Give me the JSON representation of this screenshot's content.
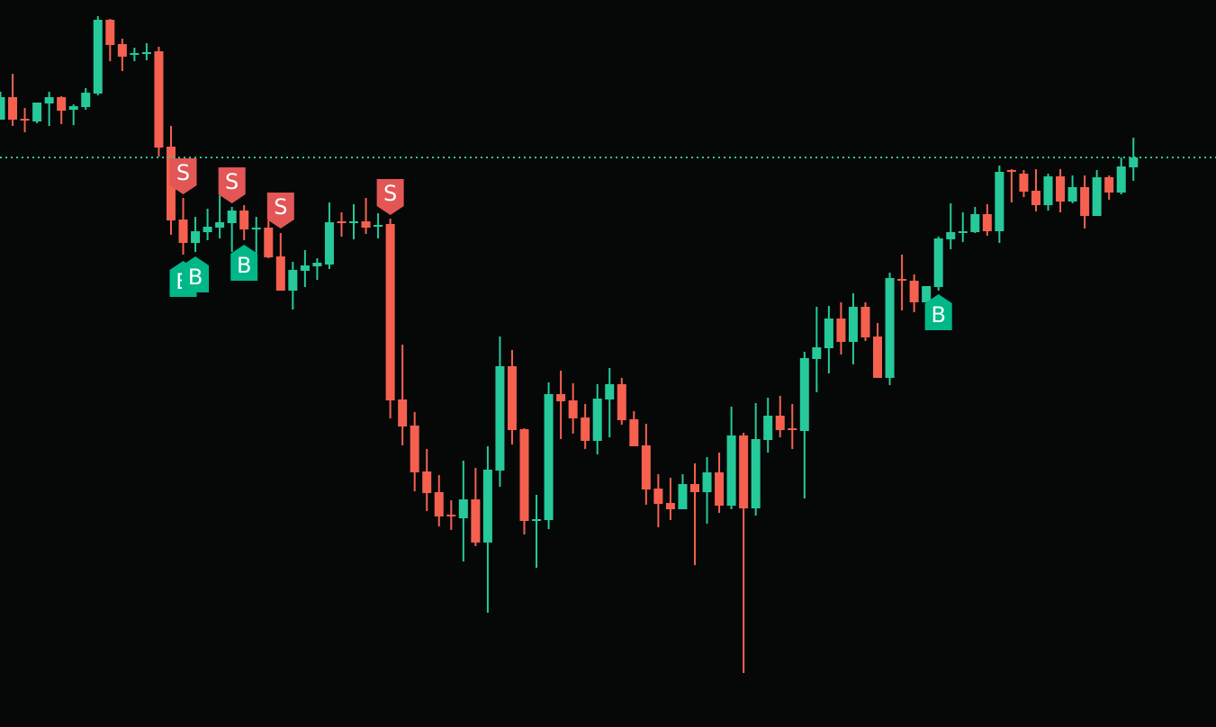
{
  "chart_data": {
    "type": "candlestick",
    "title": "",
    "xlabel": "",
    "ylabel": "",
    "grid": false,
    "ylim": [
      192,
      1000
    ],
    "colors": {
      "background": "#060808",
      "up": "#26c99a",
      "down": "#f5604f",
      "reference_line": "#26c99a",
      "sell_marker": "#e35656",
      "buy_marker": "#00b887",
      "marker_text": "#ffffff"
    },
    "reference_line": 825,
    "candles": [
      [
        867,
        898,
        867,
        892
      ],
      [
        892,
        918,
        860,
        867
      ],
      [
        868,
        880,
        853,
        867
      ],
      [
        865,
        886,
        863,
        886
      ],
      [
        885,
        898,
        860,
        892
      ],
      [
        892,
        893,
        862,
        877
      ],
      [
        878,
        884,
        861,
        882
      ],
      [
        881,
        902,
        878,
        897
      ],
      [
        896,
        982,
        894,
        978
      ],
      [
        978,
        979,
        932,
        950
      ],
      [
        951,
        957,
        921,
        937
      ],
      [
        939,
        947,
        932,
        941
      ],
      [
        940,
        952,
        933,
        942
      ],
      [
        943,
        948,
        826,
        836
      ],
      [
        837,
        860,
        739,
        755
      ],
      [
        756,
        780,
        717,
        730
      ],
      [
        730,
        759,
        720,
        743
      ],
      [
        742,
        768,
        733,
        748
      ],
      [
        747,
        783,
        735,
        753
      ],
      [
        752,
        770,
        720,
        766
      ],
      [
        766,
        772,
        733,
        745
      ],
      [
        746,
        759,
        710,
        747
      ],
      [
        747,
        755,
        713,
        714
      ],
      [
        715,
        741,
        677,
        677
      ],
      [
        677,
        709,
        656,
        700
      ],
      [
        699,
        722,
        681,
        705
      ],
      [
        704,
        713,
        689,
        708
      ],
      [
        706,
        775,
        701,
        753
      ],
      [
        754,
        764,
        737,
        752
      ],
      [
        752,
        773,
        734,
        754
      ],
      [
        754,
        780,
        740,
        747
      ],
      [
        748,
        763,
        735,
        750
      ],
      [
        751,
        757,
        535,
        555
      ],
      [
        556,
        617,
        505,
        526
      ],
      [
        527,
        542,
        454,
        475
      ],
      [
        476,
        501,
        432,
        452
      ],
      [
        453,
        472,
        415,
        426
      ],
      [
        428,
        444,
        411,
        426
      ],
      [
        424,
        488,
        376,
        445
      ],
      [
        445,
        480,
        393,
        397
      ],
      [
        397,
        504,
        319,
        478
      ],
      [
        477,
        626,
        459,
        593
      ],
      [
        593,
        611,
        506,
        522
      ],
      [
        523,
        524,
        406,
        421
      ],
      [
        422,
        450,
        369,
        423
      ],
      [
        422,
        575,
        412,
        562
      ],
      [
        562,
        588,
        512,
        554
      ],
      [
        555,
        574,
        518,
        535
      ],
      [
        536,
        551,
        501,
        510
      ],
      [
        510,
        573,
        495,
        557
      ],
      [
        556,
        591,
        514,
        573
      ],
      [
        573,
        580,
        528,
        533
      ],
      [
        534,
        543,
        504,
        504
      ],
      [
        505,
        529,
        439,
        456
      ],
      [
        457,
        473,
        414,
        440
      ],
      [
        441,
        469,
        422,
        434
      ],
      [
        434,
        473,
        434,
        462
      ],
      [
        462,
        485,
        372,
        453
      ],
      [
        453,
        492,
        418,
        475
      ],
      [
        475,
        497,
        430,
        438
      ],
      [
        438,
        548,
        434,
        516
      ],
      [
        516,
        519,
        252,
        435
      ],
      [
        435,
        552,
        427,
        512
      ],
      [
        511,
        558,
        497,
        538
      ],
      [
        538,
        560,
        514,
        522
      ],
      [
        524,
        551,
        501,
        522
      ],
      [
        521,
        609,
        446,
        602
      ],
      [
        601,
        659,
        564,
        614
      ],
      [
        613,
        660,
        585,
        646
      ],
      [
        646,
        664,
        606,
        620
      ],
      [
        620,
        674,
        595,
        659
      ],
      [
        659,
        664,
        621,
        625
      ],
      [
        626,
        641,
        580,
        580
      ],
      [
        580,
        697,
        572,
        691
      ],
      [
        690,
        717,
        655,
        688
      ],
      [
        688,
        695,
        653,
        664
      ],
      [
        664,
        682,
        664,
        682
      ],
      [
        681,
        737,
        677,
        735
      ],
      [
        734,
        774,
        723,
        742
      ],
      [
        743,
        764,
        731,
        743
      ],
      [
        742,
        770,
        741,
        762
      ],
      [
        762,
        773,
        738,
        743
      ],
      [
        743,
        816,
        730,
        809
      ],
      [
        811,
        812,
        775,
        809
      ],
      [
        807,
        811,
        781,
        787
      ],
      [
        788,
        812,
        765,
        772
      ],
      [
        772,
        807,
        766,
        804
      ],
      [
        804,
        812,
        764,
        776
      ],
      [
        776,
        805,
        774,
        792
      ],
      [
        792,
        805,
        746,
        760
      ],
      [
        760,
        811,
        760,
        803
      ],
      [
        803,
        805,
        778,
        786
      ],
      [
        786,
        825,
        784,
        815
      ],
      [
        814,
        847,
        799,
        825
      ]
    ],
    "markers": [
      {
        "candle": 15,
        "type": "sell",
        "label": "S",
        "price": 784
      },
      {
        "candle": 19,
        "type": "sell",
        "label": "S",
        "price": 774
      },
      {
        "candle": 23,
        "type": "sell",
        "label": "S",
        "price": 746
      },
      {
        "candle": 32,
        "type": "sell",
        "label": "S",
        "price": 761
      },
      {
        "candle": 15,
        "type": "buy",
        "label": "B",
        "price": 710
      },
      {
        "candle": 16,
        "type": "buy",
        "label": "B",
        "price": 715
      },
      {
        "candle": 20,
        "type": "buy",
        "label": "B",
        "price": 728
      },
      {
        "candle": 77,
        "type": "buy",
        "label": "B",
        "price": 673
      }
    ]
  }
}
